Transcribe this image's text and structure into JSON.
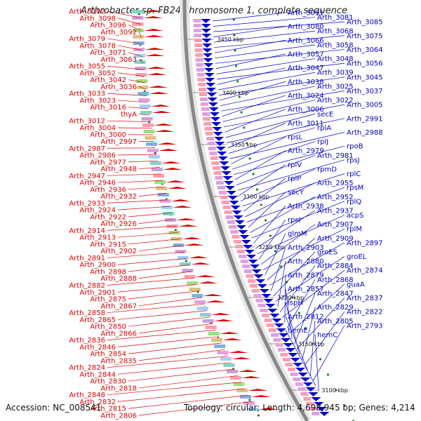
{
  "title": "Arthrobacter sp. FB24 chromosome 1, complete sequence",
  "footer": {
    "accession": "Accession: NC_008541",
    "stats": "Topology: circular; Length: 4,698,945 bp; Genes: 4,214"
  },
  "colors": {
    "forward": "#e00000",
    "reverse": "#0000cc",
    "backbone": "#888888",
    "ticks": "#2a7a2a"
  },
  "scale_labels": [
    "3450 kbp",
    "3400 kbp",
    "3350 kbp",
    "3300 kbp",
    "3250 kbp",
    "3200 kbp",
    "3150 kbp",
    "3100 kbp"
  ],
  "left_genes": [
    "Arth_3102",
    "Arth_3098",
    "Arth_3096",
    "Arth_3092",
    "Arth_3079",
    "Arth_3078",
    "Arth_3071",
    "Arth_3063",
    "Arth_3055",
    "Arth_3052",
    "Arth_3042",
    "Arth_3036",
    "Arth_3033",
    "Arth_3023",
    "Arth_3016",
    "thyA",
    "Arth_3012",
    "Arth_3004",
    "Arth_3000",
    "Arth_2997",
    "Arth_2987",
    "Arth_2986",
    "Arth_2977",
    "Arth_2948",
    "Arth_2947",
    "Arth_2946",
    "Arth_2936",
    "Arth_2932",
    "Arth_2933",
    "Arth_2924",
    "Arth_2922",
    "Arth_2926",
    "Arth_2914",
    "Arth_2913",
    "Arth_2915",
    "Arth_2902",
    "Arth_2891",
    "Arth_2900",
    "Arth_2898",
    "Arth_2888",
    "Arth_2882",
    "Arth_2901",
    "Arth_2875",
    "Arth_2867",
    "Arth_2858",
    "Arth_2865",
    "Arth_2850",
    "Arth_2866",
    "Arth_2836",
    "Arth_2846",
    "Arth_2854",
    "Arth_2835",
    "Arth_2824",
    "Arth_2844",
    "Arth_2830",
    "Arth_2818",
    "Arth_2848",
    "Arth_2832",
    "Arth_2815",
    "Arth_2806"
  ],
  "right_genes": [
    "Arth_3091",
    "Arth_3081",
    "Arth_3085",
    "Arth_3080",
    "Arth_3068",
    "Arth_3075",
    "Arth_3066",
    "Arth_3058",
    "Arth_3064",
    "Arth_3057",
    "Arth_3048",
    "Arth_3056",
    "Arth_3047",
    "Arth_3039",
    "Arth_3045",
    "Arth_3038",
    "Arth_3025",
    "Arth_3037",
    "Arth_3024",
    "Arth_3022",
    "Arth_3005",
    "Arth_3006",
    "secE",
    "Arth_2991",
    "Arth_3011",
    "rplA",
    "Arth_2988",
    "rpsL",
    "rplJ",
    "rpoB",
    "Arth_2979",
    "Arth_2981",
    "rpsJ",
    "rplV",
    "rpmD",
    "rplC",
    "rplP",
    "Arth_2955",
    "rpsM",
    "secY",
    "Arth_2952",
    "rplQ",
    "Arth_2938",
    "Arth_2937",
    "acpS",
    "rpsI",
    "Arth_2907",
    "rplM",
    "glmM",
    "Arth_2909",
    "Arth_2897",
    "Arth_2903",
    "groES",
    "groEL",
    "Arth_2880",
    "Arth_2884",
    "Arth_2874",
    "Arth_2879",
    "Arth_2868",
    "guaA",
    "Arth_2857",
    "Arth_2847",
    "Arth_2837",
    "ispH",
    "Arth_2829",
    "Arth_2822",
    "Arth_2812",
    "Arth_2805",
    "Arth_2793",
    "hemE",
    "hemC"
  ]
}
